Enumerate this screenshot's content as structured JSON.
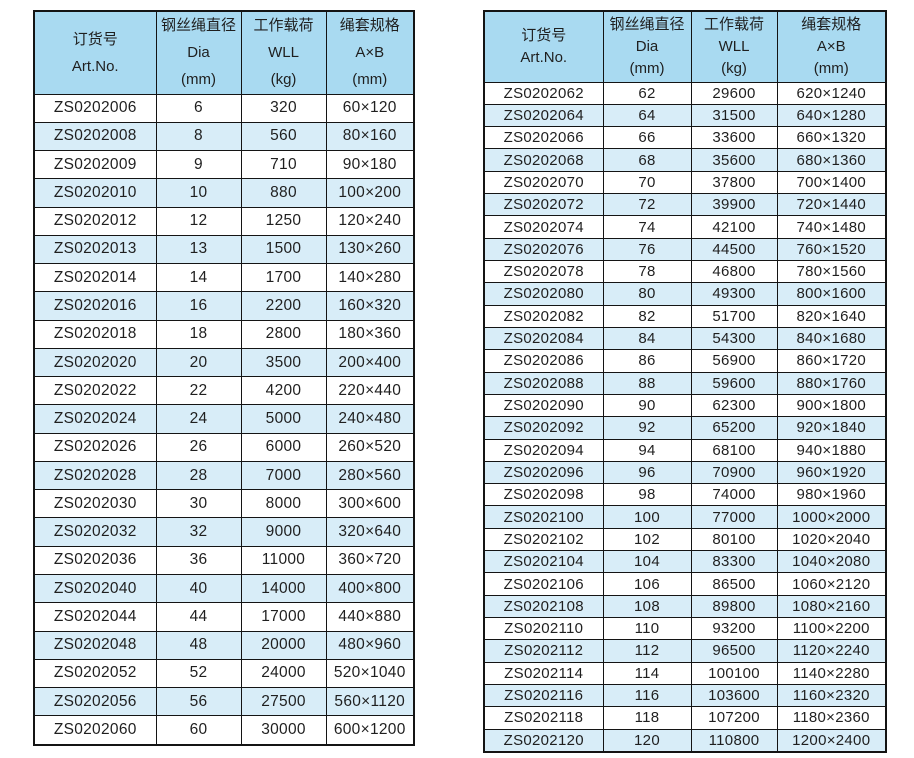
{
  "page": {
    "background": "#ffffff"
  },
  "colors": {
    "header_bg": "#a9daf1",
    "row_alt_bg": "#d8edf8",
    "border": "#141414",
    "text": "#1f1f1f"
  },
  "tables": [
    {
      "name": "left",
      "columns": [
        {
          "key": "art-no",
          "zh": "订货号",
          "en": "Art.No.",
          "unit": ""
        },
        {
          "key": "dia",
          "zh": "钢丝绳直径",
          "en": "Dia",
          "unit": "(mm)"
        },
        {
          "key": "wll",
          "zh": "工作载荷",
          "en": "WLL",
          "unit": "(kg)"
        },
        {
          "key": "spec",
          "zh": "绳套规格",
          "en": "A×B",
          "unit": "(mm)"
        }
      ],
      "rows": [
        [
          "ZS0202006",
          "6",
          "320",
          "60×120"
        ],
        [
          "ZS0202008",
          "8",
          "560",
          "80×160"
        ],
        [
          "ZS0202009",
          "9",
          "710",
          "90×180"
        ],
        [
          "ZS0202010",
          "10",
          "880",
          "100×200"
        ],
        [
          "ZS0202012",
          "12",
          "1250",
          "120×240"
        ],
        [
          "ZS0202013",
          "13",
          "1500",
          "130×260"
        ],
        [
          "ZS0202014",
          "14",
          "1700",
          "140×280"
        ],
        [
          "ZS0202016",
          "16",
          "2200",
          "160×320"
        ],
        [
          "ZS0202018",
          "18",
          "2800",
          "180×360"
        ],
        [
          "ZS0202020",
          "20",
          "3500",
          "200×400"
        ],
        [
          "ZS0202022",
          "22",
          "4200",
          "220×440"
        ],
        [
          "ZS0202024",
          "24",
          "5000",
          "240×480"
        ],
        [
          "ZS0202026",
          "26",
          "6000",
          "260×520"
        ],
        [
          "ZS0202028",
          "28",
          "7000",
          "280×560"
        ],
        [
          "ZS0202030",
          "30",
          "8000",
          "300×600"
        ],
        [
          "ZS0202032",
          "32",
          "9000",
          "320×640"
        ],
        [
          "ZS0202036",
          "36",
          "11000",
          "360×720"
        ],
        [
          "ZS0202040",
          "40",
          "14000",
          "400×800"
        ],
        [
          "ZS0202044",
          "44",
          "17000",
          "440×880"
        ],
        [
          "ZS0202048",
          "48",
          "20000",
          "480×960"
        ],
        [
          "ZS0202052",
          "52",
          "24000",
          "520×1040"
        ],
        [
          "ZS0202056",
          "56",
          "27500",
          "560×1120"
        ],
        [
          "ZS0202060",
          "60",
          "30000",
          "600×1200"
        ]
      ]
    },
    {
      "name": "right",
      "columns": [
        {
          "key": "art-no",
          "zh": "订货号",
          "en": "Art.No.",
          "unit": ""
        },
        {
          "key": "dia",
          "zh": "钢丝绳直径",
          "en": "Dia",
          "unit": "(mm)"
        },
        {
          "key": "wll",
          "zh": "工作载荷",
          "en": "WLL",
          "unit": "(kg)"
        },
        {
          "key": "spec",
          "zh": "绳套规格",
          "en": "A×B",
          "unit": "(mm)"
        }
      ],
      "rows": [
        [
          "ZS0202062",
          "62",
          "29600",
          "620×1240"
        ],
        [
          "ZS0202064",
          "64",
          "31500",
          "640×1280"
        ],
        [
          "ZS0202066",
          "66",
          "33600",
          "660×1320"
        ],
        [
          "ZS0202068",
          "68",
          "35600",
          "680×1360"
        ],
        [
          "ZS0202070",
          "70",
          "37800",
          "700×1400"
        ],
        [
          "ZS0202072",
          "72",
          "39900",
          "720×1440"
        ],
        [
          "ZS0202074",
          "74",
          "42100",
          "740×1480"
        ],
        [
          "ZS0202076",
          "76",
          "44500",
          "760×1520"
        ],
        [
          "ZS0202078",
          "78",
          "46800",
          "780×1560"
        ],
        [
          "ZS0202080",
          "80",
          "49300",
          "800×1600"
        ],
        [
          "ZS0202082",
          "82",
          "51700",
          "820×1640"
        ],
        [
          "ZS0202084",
          "84",
          "54300",
          "840×1680"
        ],
        [
          "ZS0202086",
          "86",
          "56900",
          "860×1720"
        ],
        [
          "ZS0202088",
          "88",
          "59600",
          "880×1760"
        ],
        [
          "ZS0202090",
          "90",
          "62300",
          "900×1800"
        ],
        [
          "ZS0202092",
          "92",
          "65200",
          "920×1840"
        ],
        [
          "ZS0202094",
          "94",
          "68100",
          "940×1880"
        ],
        [
          "ZS0202096",
          "96",
          "70900",
          "960×1920"
        ],
        [
          "ZS0202098",
          "98",
          "74000",
          "980×1960"
        ],
        [
          "ZS0202100",
          "100",
          "77000",
          "1000×2000"
        ],
        [
          "ZS0202102",
          "102",
          "80100",
          "1020×2040"
        ],
        [
          "ZS0202104",
          "104",
          "83300",
          "1040×2080"
        ],
        [
          "ZS0202106",
          "106",
          "86500",
          "1060×2120"
        ],
        [
          "ZS0202108",
          "108",
          "89800",
          "1080×2160"
        ],
        [
          "ZS0202110",
          "110",
          "93200",
          "1100×2200"
        ],
        [
          "ZS0202112",
          "112",
          "96500",
          "1120×2240"
        ],
        [
          "ZS0202114",
          "114",
          "100100",
          "1140×2280"
        ],
        [
          "ZS0202116",
          "116",
          "103600",
          "1160×2320"
        ],
        [
          "ZS0202118",
          "118",
          "107200",
          "1180×2360"
        ],
        [
          "ZS0202120",
          "120",
          "110800",
          "1200×2400"
        ]
      ]
    }
  ]
}
